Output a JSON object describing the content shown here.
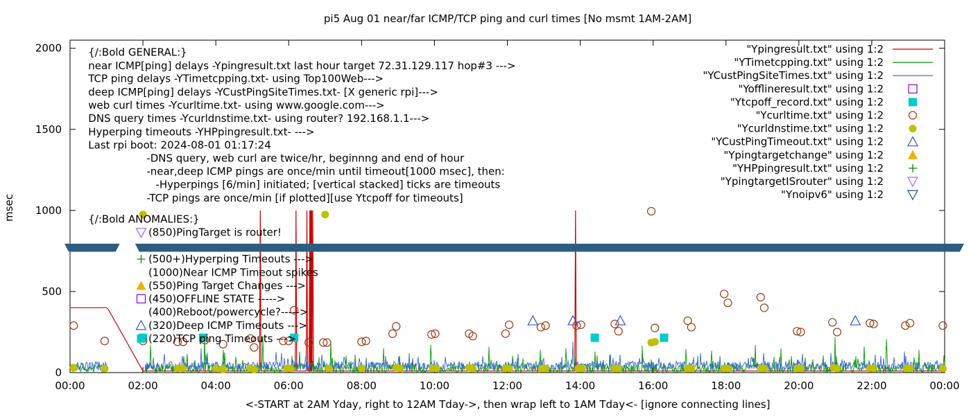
{
  "chart_data": {
    "type": "line",
    "title": "pi5 Aug 01  near/far ICMP/TCP ping and curl times [No msmt 1AM-2AM]",
    "xlabel": "<-START at 2AM Yday, right to 12AM Tday->, then wrap left to 1AM Tday<- [ignore connecting lines]",
    "ylabel": "msec",
    "xlim": [
      0,
      24
    ],
    "ylim": [
      0,
      2050
    ],
    "x_ticks": [
      {
        "v": 0,
        "label": "00:00"
      },
      {
        "v": 2,
        "label": "02:00"
      },
      {
        "v": 4,
        "label": "04:00"
      },
      {
        "v": 6,
        "label": "06:00"
      },
      {
        "v": 8,
        "label": "08:00"
      },
      {
        "v": 10,
        "label": "10:00"
      },
      {
        "v": 12,
        "label": "12:00"
      },
      {
        "v": 14,
        "label": "14:00"
      },
      {
        "v": 16,
        "label": "16:00"
      },
      {
        "v": 18,
        "label": "18:00"
      },
      {
        "v": 20,
        "label": "20:00"
      },
      {
        "v": 22,
        "label": "22:00"
      },
      {
        "v": 24,
        "label": "00:00"
      }
    ],
    "y_ticks": [
      {
        "v": 0,
        "label": "0"
      },
      {
        "v": 500,
        "label": "500"
      },
      {
        "v": 1000,
        "label": "1000"
      },
      {
        "v": 1500,
        "label": "1500"
      },
      {
        "v": 2000,
        "label": "2000"
      }
    ],
    "grid": false,
    "legend_position": "top-right",
    "notes_top": [
      {
        "text": "{/:Bold GENERAL:}",
        "x": 0.5,
        "y": 1975
      },
      {
        "text": "near ICMP[ping] delays -Ypingresult.txt last hour target 72.31.129.117 hop#3 --->",
        "x": 0.5,
        "y": 1893
      },
      {
        "text": "TCP ping delays -YTimetcpping.txt- using Top100Web--->",
        "x": 0.5,
        "y": 1812
      },
      {
        "text": "deep ICMP[ping] delays -YCustPingSiteTimes.txt- [X generic rpi]--->",
        "x": 0.5,
        "y": 1730
      },
      {
        "text": "web curl times -Ycurltime.txt- using www.google.com--->",
        "x": 0.5,
        "y": 1648
      },
      {
        "text": "DNS query times -Ycurldnstime.txt- using router? 192.168.1.1--->",
        "x": 0.5,
        "y": 1567
      },
      {
        "text": "Hyperping timeouts -YHPpingresult.txt- --->",
        "x": 0.5,
        "y": 1485
      },
      {
        "text": "Last rpi boot: 2024-08-01 01:17:24",
        "x": 0.5,
        "y": 1404
      },
      {
        "text": "-DNS query, web curl are twice/hr, beginnng and end of hour",
        "x": 2.1,
        "y": 1322
      },
      {
        "text": "-near,deep ICMP pings are once/min until timeout[1000 msec], then:",
        "x": 2.1,
        "y": 1240
      },
      {
        "text": "-Hyperpings [6/min] initiated; [vertical stacked] ticks are timeouts",
        "x": 2.35,
        "y": 1159
      },
      {
        "text": "-TCP pings are once/min [if plotted][use Ytcpoff for timeouts]",
        "x": 2.1,
        "y": 1077
      }
    ],
    "notes_anomalies": [
      {
        "text": "{/:Bold ANOMALIES:}",
        "x": 0.5,
        "y": 945
      },
      {
        "text": "(850)PingTarget is router!",
        "x": 2.15,
        "y": 864
      },
      {
        "text": "(500+)Hyperping Timeouts --->",
        "x": 2.15,
        "y": 700
      },
      {
        "text": "(1000)Near ICMP Timeout spikes",
        "x": 2.15,
        "y": 618
      },
      {
        "text": "(550)Ping Target Changes --->",
        "x": 2.15,
        "y": 536
      },
      {
        "text": "(450)OFFLINE STATE ----->",
        "x": 2.15,
        "y": 455
      },
      {
        "text": "(400)Reboot/powercycle?----->",
        "x": 2.15,
        "y": 373
      },
      {
        "text": "(320)Deep ICMP Timeouts --->",
        "x": 2.15,
        "y": 291
      },
      {
        "text": "(220)TCP ping Timeouts --->",
        "x": 2.15,
        "y": 210
      }
    ],
    "noipv6_band": {
      "y_from": 745,
      "y_to": 795,
      "gap_from": 1.25,
      "gap_to": 1.9
    },
    "series": [
      {
        "name": "\"Ypingresult.txt\" using 1:2",
        "style": "line",
        "color": "#cc0000",
        "x": [
          0,
          1.0,
          1.05,
          2.0,
          2.05,
          5.2,
          5.22,
          5.24,
          6.18,
          6.2,
          6.22,
          6.48,
          6.5,
          6.52,
          6.56,
          6.58,
          6.6,
          6.62,
          6.64,
          6.66,
          6.68,
          6.7,
          13.85,
          13.87,
          13.89,
          24
        ],
        "y": [
          400,
          400,
          390,
          10,
          10,
          10,
          1000,
          10,
          10,
          1000,
          10,
          10,
          1000,
          10,
          10,
          1000,
          10,
          1000,
          10,
          1000,
          10,
          10,
          10,
          1000,
          10,
          10
        ]
      },
      {
        "name": "\"YTimetcpping.txt\" using 1:2",
        "style": "noise",
        "color": "#009900",
        "base": 25,
        "amp": 60,
        "seed": 7,
        "spikes": [
          {
            "x": 2.2,
            "y": 170
          },
          {
            "x": 3.7,
            "y": 230
          },
          {
            "x": 4.2,
            "y": 140
          },
          {
            "x": 5.3,
            "y": 220
          },
          {
            "x": 6.3,
            "y": 130
          },
          {
            "x": 7.15,
            "y": 195
          },
          {
            "x": 8.6,
            "y": 150
          },
          {
            "x": 9.9,
            "y": 170
          },
          {
            "x": 11.5,
            "y": 160
          },
          {
            "x": 12.9,
            "y": 140
          },
          {
            "x": 13.6,
            "y": 150
          },
          {
            "x": 14.4,
            "y": 130
          },
          {
            "x": 15.7,
            "y": 165
          },
          {
            "x": 16.9,
            "y": 145
          },
          {
            "x": 17.6,
            "y": 135
          },
          {
            "x": 18.8,
            "y": 170
          },
          {
            "x": 19.5,
            "y": 150
          },
          {
            "x": 21.0,
            "y": 220
          },
          {
            "x": 21.8,
            "y": 160
          },
          {
            "x": 22.4,
            "y": 205
          },
          {
            "x": 23.3,
            "y": 140
          }
        ]
      },
      {
        "name": "\"YCustPingSiteTimes.txt\" using 1:2",
        "style": "noise",
        "color": "#3366cc",
        "base": 40,
        "amp": 55,
        "seed": 13,
        "spikes": [
          {
            "x": 3.6,
            "y": 150
          },
          {
            "x": 5.8,
            "y": 120
          },
          {
            "x": 6.9,
            "y": 110
          },
          {
            "x": 9.3,
            "y": 120
          },
          {
            "x": 12.3,
            "y": 115
          },
          {
            "x": 13.8,
            "y": 190
          },
          {
            "x": 15.1,
            "y": 110
          },
          {
            "x": 17.3,
            "y": 120
          },
          {
            "x": 20.1,
            "y": 115
          },
          {
            "x": 22.9,
            "y": 130
          }
        ]
      },
      {
        "name": "\"Yofflineresult.txt\" using 1:2",
        "style": "marker",
        "marker": "open-square",
        "color": "#9400d3",
        "points": []
      },
      {
        "name": "\"Ytcpoff_record.txt\" using 1:2",
        "style": "marker",
        "marker": "filled-square",
        "color": "#00cccc",
        "points": [
          [
            2.0,
            215
          ],
          [
            3.65,
            215
          ],
          [
            6.15,
            215
          ],
          [
            14.4,
            215
          ],
          [
            16.3,
            215
          ]
        ]
      },
      {
        "name": "\"Ycurltime.txt\" using 1:2",
        "style": "marker",
        "marker": "open-circle",
        "color": "#a0380e",
        "points": [
          [
            0.1,
            290
          ],
          [
            0.95,
            195
          ],
          [
            2.0,
            195
          ],
          [
            2.95,
            190
          ],
          [
            3.1,
            190
          ],
          [
            3.7,
            200
          ],
          [
            4.2,
            175
          ],
          [
            4.95,
            210
          ],
          [
            5.05,
            155
          ],
          [
            5.85,
            195
          ],
          [
            6.0,
            195
          ],
          [
            6.15,
            385
          ],
          [
            6.55,
            185
          ],
          [
            6.95,
            185
          ],
          [
            7.05,
            185
          ],
          [
            8.0,
            190
          ],
          [
            8.12,
            195
          ],
          [
            8.85,
            240
          ],
          [
            8.95,
            285
          ],
          [
            9.92,
            235
          ],
          [
            10.02,
            240
          ],
          [
            10.95,
            240
          ],
          [
            11.05,
            225
          ],
          [
            11.95,
            240
          ],
          [
            12.05,
            295
          ],
          [
            12.92,
            280
          ],
          [
            13.05,
            290
          ],
          [
            13.9,
            290
          ],
          [
            14.02,
            295
          ],
          [
            14.95,
            300
          ],
          [
            15.05,
            255
          ],
          [
            15.95,
            995
          ],
          [
            16.05,
            275
          ],
          [
            16.95,
            320
          ],
          [
            17.05,
            280
          ],
          [
            17.95,
            485
          ],
          [
            18.05,
            430
          ],
          [
            18.95,
            465
          ],
          [
            19.05,
            400
          ],
          [
            19.95,
            255
          ],
          [
            20.05,
            250
          ],
          [
            20.92,
            310
          ],
          [
            21.05,
            250
          ],
          [
            21.95,
            305
          ],
          [
            22.05,
            300
          ],
          [
            22.92,
            290
          ],
          [
            23.05,
            305
          ],
          [
            23.95,
            290
          ]
        ]
      },
      {
        "name": "\"Ycurldnstime.txt\" using 1:2",
        "style": "marker",
        "marker": "filled-circle",
        "color": "#c0c000",
        "points": [
          [
            0.1,
            30
          ],
          [
            0.95,
            25
          ],
          [
            2.0,
            975
          ],
          [
            2.95,
            25
          ],
          [
            3.1,
            25
          ],
          [
            4.0,
            25
          ],
          [
            4.2,
            20
          ],
          [
            4.95,
            25
          ],
          [
            5.05,
            20
          ],
          [
            5.95,
            25
          ],
          [
            6.05,
            25
          ],
          [
            7.0,
            975
          ],
          [
            7.1,
            25
          ],
          [
            8.0,
            25
          ],
          [
            8.95,
            30
          ],
          [
            9.05,
            25
          ],
          [
            9.95,
            25
          ],
          [
            10.05,
            25
          ],
          [
            10.95,
            30
          ],
          [
            11.05,
            25
          ],
          [
            11.95,
            25
          ],
          [
            12.05,
            25
          ],
          [
            12.95,
            25
          ],
          [
            13.05,
            25
          ],
          [
            13.95,
            25
          ],
          [
            14.05,
            25
          ],
          [
            14.95,
            25
          ],
          [
            15.05,
            25
          ],
          [
            15.95,
            185
          ],
          [
            16.05,
            190
          ],
          [
            16.95,
            25
          ],
          [
            17.05,
            25
          ],
          [
            17.95,
            25
          ],
          [
            18.05,
            25
          ],
          [
            18.95,
            25
          ],
          [
            19.05,
            25
          ],
          [
            19.95,
            25
          ],
          [
            20.05,
            25
          ],
          [
            20.95,
            30
          ],
          [
            21.05,
            25
          ],
          [
            21.95,
            25
          ],
          [
            22.05,
            25
          ],
          [
            22.95,
            25
          ],
          [
            23.05,
            25
          ],
          [
            23.95,
            25
          ]
        ]
      },
      {
        "name": "\"YCustPingTimeout.txt\" using 1:2",
        "style": "marker",
        "marker": "open-triangle-up",
        "color": "#3355cc",
        "points": [
          [
            12.7,
            320
          ],
          [
            13.8,
            320
          ],
          [
            15.1,
            320
          ],
          [
            21.55,
            320
          ]
        ]
      },
      {
        "name": "\"Ypingtargetchange\" using 1:2",
        "style": "marker",
        "marker": "filled-triangle-up",
        "color": "#f0b000",
        "points": []
      },
      {
        "name": "\"YHPpingresult.txt\" using 1:2",
        "style": "marker",
        "marker": "plus",
        "color": "#008800",
        "points": []
      },
      {
        "name": "\"YpingtargetISrouter\" using 1:2",
        "style": "marker",
        "marker": "open-triangle-down",
        "color": "#b060ff",
        "points": []
      },
      {
        "name": "\"Ynoipv6\" using 1:2",
        "style": "marker",
        "marker": "open-triangle-down",
        "color": "#1a4a88",
        "points": []
      }
    ]
  }
}
